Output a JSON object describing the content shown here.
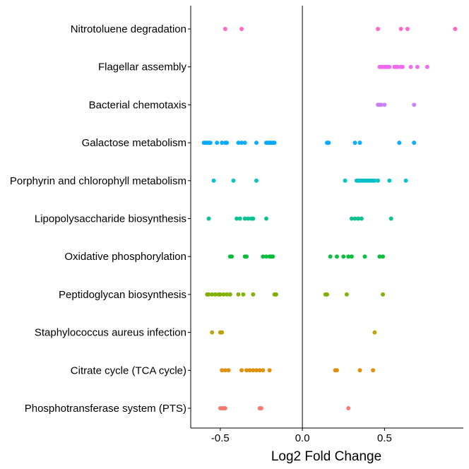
{
  "chart_data": {
    "type": "scatter",
    "title": "",
    "xlabel": "Log2 Fold Change",
    "ylabel": "",
    "xlim": [
      -0.68,
      0.98
    ],
    "x_ticks": [
      -0.5,
      0.0,
      0.5
    ],
    "x_tick_labels": [
      "-0.5",
      "0.0",
      "0.5"
    ],
    "grid": false,
    "legend": "none",
    "reference_line_x": 0,
    "categories": [
      "Phosphotransferase system (PTS)",
      "Citrate cycle (TCA cycle)",
      "Staphylococcus aureus infection",
      "Peptidoglycan biosynthesis",
      "Oxidative phosphorylation",
      "Lipopolysaccharide biosynthesis",
      "Porphyrin and chlorophyll metabolism",
      "Galactose metabolism",
      "Bacterial chemotaxis",
      "Flagellar assembly",
      "Nitrotoluene degradation"
    ],
    "series": [
      {
        "category": "Phosphotransferase system (PTS)",
        "color": "#F8766D",
        "x": [
          -0.5,
          -0.49,
          -0.48,
          -0.47,
          -0.26,
          -0.25,
          0.28
        ]
      },
      {
        "category": "Citrate cycle (TCA cycle)",
        "color": "#DE8C00",
        "x": [
          -0.49,
          -0.47,
          -0.45,
          -0.37,
          -0.34,
          -0.32,
          -0.3,
          -0.28,
          -0.26,
          -0.24,
          -0.2,
          0.2,
          0.21,
          0.35,
          0.43
        ]
      },
      {
        "category": "Staphylococcus aureus infection",
        "color": "#B79F00",
        "x": [
          -0.55,
          -0.5,
          -0.49,
          0.44
        ]
      },
      {
        "category": "Peptidoglycan biosynthesis",
        "color": "#7CAE00",
        "x": [
          -0.58,
          -0.57,
          -0.55,
          -0.53,
          -0.51,
          -0.5,
          -0.48,
          -0.46,
          -0.44,
          -0.39,
          -0.36,
          -0.3,
          -0.17,
          -0.16,
          0.14,
          0.15,
          0.27,
          0.49
        ]
      },
      {
        "category": "Oxidative phosphorylation",
        "color": "#00BA38",
        "x": [
          -0.44,
          -0.43,
          -0.35,
          -0.34,
          -0.24,
          -0.22,
          -0.2,
          -0.19,
          -0.18,
          0.17,
          0.21,
          0.25,
          0.28,
          0.3,
          0.38,
          0.47,
          0.49
        ]
      },
      {
        "category": "Lipopolysaccharide biosynthesis",
        "color": "#00C08B",
        "x": [
          -0.57,
          -0.4,
          -0.38,
          -0.35,
          -0.33,
          -0.31,
          -0.3,
          -0.22,
          0.3,
          0.32,
          0.34,
          0.36,
          0.54
        ]
      },
      {
        "category": "Porphyrin and chlorophyll metabolism",
        "color": "#00BFC4",
        "x": [
          -0.54,
          -0.42,
          -0.28,
          0.26,
          0.33,
          0.34,
          0.35,
          0.36,
          0.37,
          0.38,
          0.39,
          0.4,
          0.41,
          0.42,
          0.43,
          0.44,
          0.46,
          0.53,
          0.63
        ]
      },
      {
        "category": "Galactose metabolism",
        "color": "#00A9FF",
        "x": [
          -0.6,
          -0.59,
          -0.58,
          -0.57,
          -0.56,
          -0.52,
          -0.49,
          -0.47,
          -0.46,
          -0.39,
          -0.37,
          -0.35,
          -0.28,
          -0.22,
          -0.21,
          -0.2,
          -0.19,
          -0.18,
          -0.17,
          0.15,
          0.16,
          0.32,
          0.35,
          0.59,
          0.68
        ]
      },
      {
        "category": "Bacterial chemotaxis",
        "color": "#C77CFF",
        "x": [
          0.46,
          0.47,
          0.48,
          0.5,
          0.68
        ]
      },
      {
        "category": "Flagellar assembly",
        "color": "#ED68ED",
        "x": [
          0.47,
          0.48,
          0.49,
          0.5,
          0.51,
          0.52,
          0.53,
          0.56,
          0.57,
          0.58,
          0.6,
          0.61,
          0.66,
          0.7,
          0.76
        ]
      },
      {
        "category": "Nitrotoluene degradation",
        "color": "#FF61C3",
        "x": [
          -0.47,
          -0.37,
          0.46,
          0.6,
          0.64,
          0.93
        ]
      }
    ]
  }
}
